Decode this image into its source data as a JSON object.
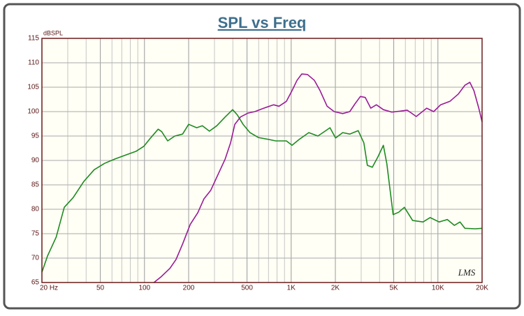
{
  "chart_data": {
    "type": "line",
    "title": "SPL vs Freq",
    "y_label": "dBSPL",
    "annotation": "LMS",
    "log_x": true,
    "grid": true,
    "xlim": [
      20,
      20000
    ],
    "ylim": [
      65,
      115
    ],
    "xticks": [
      {
        "value": 20,
        "label": "20  Hz"
      },
      50,
      100,
      200,
      500,
      {
        "value": 1000,
        "label": "1K"
      },
      {
        "value": 2000,
        "label": "2K"
      },
      {
        "value": 5000,
        "label": "5K"
      },
      {
        "value": 10000,
        "label": "10K"
      },
      {
        "value": 20000,
        "label": "20K"
      }
    ],
    "xgrid": [
      30,
      40,
      60,
      70,
      80,
      90,
      300,
      400,
      600,
      700,
      800,
      900,
      3000,
      4000,
      6000,
      7000,
      8000,
      9000
    ],
    "yticks": [
      65,
      70,
      75,
      80,
      85,
      90,
      95,
      100,
      105,
      110,
      115
    ],
    "series": [
      {
        "color": "#1e8a1e",
        "x": [
          20,
          21.8,
          25,
          28.4,
          32.7,
          38.6,
          45.4,
          53.5,
          63,
          74.5,
          88,
          99,
          110,
          124,
          131,
          144,
          161,
          182,
          200,
          227,
          248,
          277,
          311,
          355,
          399,
          430,
          470,
          524,
          597,
          703,
          785,
          927,
          1013,
          1133,
          1318,
          1520,
          1703,
          1839,
          2007,
          2243,
          2507,
          2864,
          3129,
          3305,
          3571,
          3894,
          4250,
          4488,
          4953,
          5409,
          5906,
          6727,
          7920,
          8844,
          10190,
          11600,
          12950,
          14150,
          15280,
          17990,
          20000
        ],
        "values": [
          67.1,
          70.4,
          74.3,
          80.4,
          82.4,
          85.7,
          88.1,
          89.4,
          90.3,
          91.1,
          91.9,
          92.9,
          94.6,
          96.4,
          95.9,
          94.0,
          95.0,
          95.4,
          97.4,
          96.7,
          97.1,
          96.0,
          97.1,
          98.9,
          100.4,
          99.3,
          97.4,
          95.7,
          94.7,
          94.3,
          94.0,
          94.0,
          93.1,
          94.3,
          95.7,
          95.0,
          96.0,
          96.7,
          94.6,
          95.7,
          95.4,
          96.1,
          93.6,
          89.0,
          88.6,
          90.7,
          93.1,
          89.3,
          78.9,
          79.4,
          80.4,
          77.7,
          77.4,
          78.3,
          77.4,
          77.9,
          76.7,
          77.4,
          76.1,
          76.0,
          76.1
        ]
      },
      {
        "color": "#9a1a96",
        "x": [
          116,
          129,
          149,
          164,
          182,
          205,
          231,
          254,
          283,
          317,
          355,
          386,
          413,
          451,
          508,
          565,
          650,
          758,
          826,
          927,
          1013,
          1095,
          1180,
          1291,
          1440,
          1573,
          1757,
          1962,
          2243,
          2507,
          2737,
          2960,
          3197,
          3488,
          3807,
          4250,
          4848,
          5532,
          6176,
          7117,
          8383,
          9358,
          10440,
          12070,
          13770,
          15280,
          16500,
          17600,
          18990,
          20000
        ],
        "values": [
          65.0,
          66.1,
          67.9,
          69.7,
          72.9,
          76.9,
          79.3,
          82.1,
          83.9,
          87.1,
          90.3,
          93.6,
          97.4,
          98.9,
          99.7,
          100.0,
          100.7,
          101.4,
          101.1,
          102.1,
          104.3,
          106.4,
          107.7,
          107.6,
          106.4,
          104.3,
          101.1,
          100.0,
          99.6,
          100.0,
          101.7,
          103.1,
          102.9,
          100.7,
          101.4,
          100.4,
          99.9,
          100.1,
          100.3,
          99.0,
          100.7,
          100.0,
          101.4,
          102.1,
          103.6,
          105.4,
          106.0,
          104.3,
          100.7,
          97.9
        ]
      }
    ]
  }
}
